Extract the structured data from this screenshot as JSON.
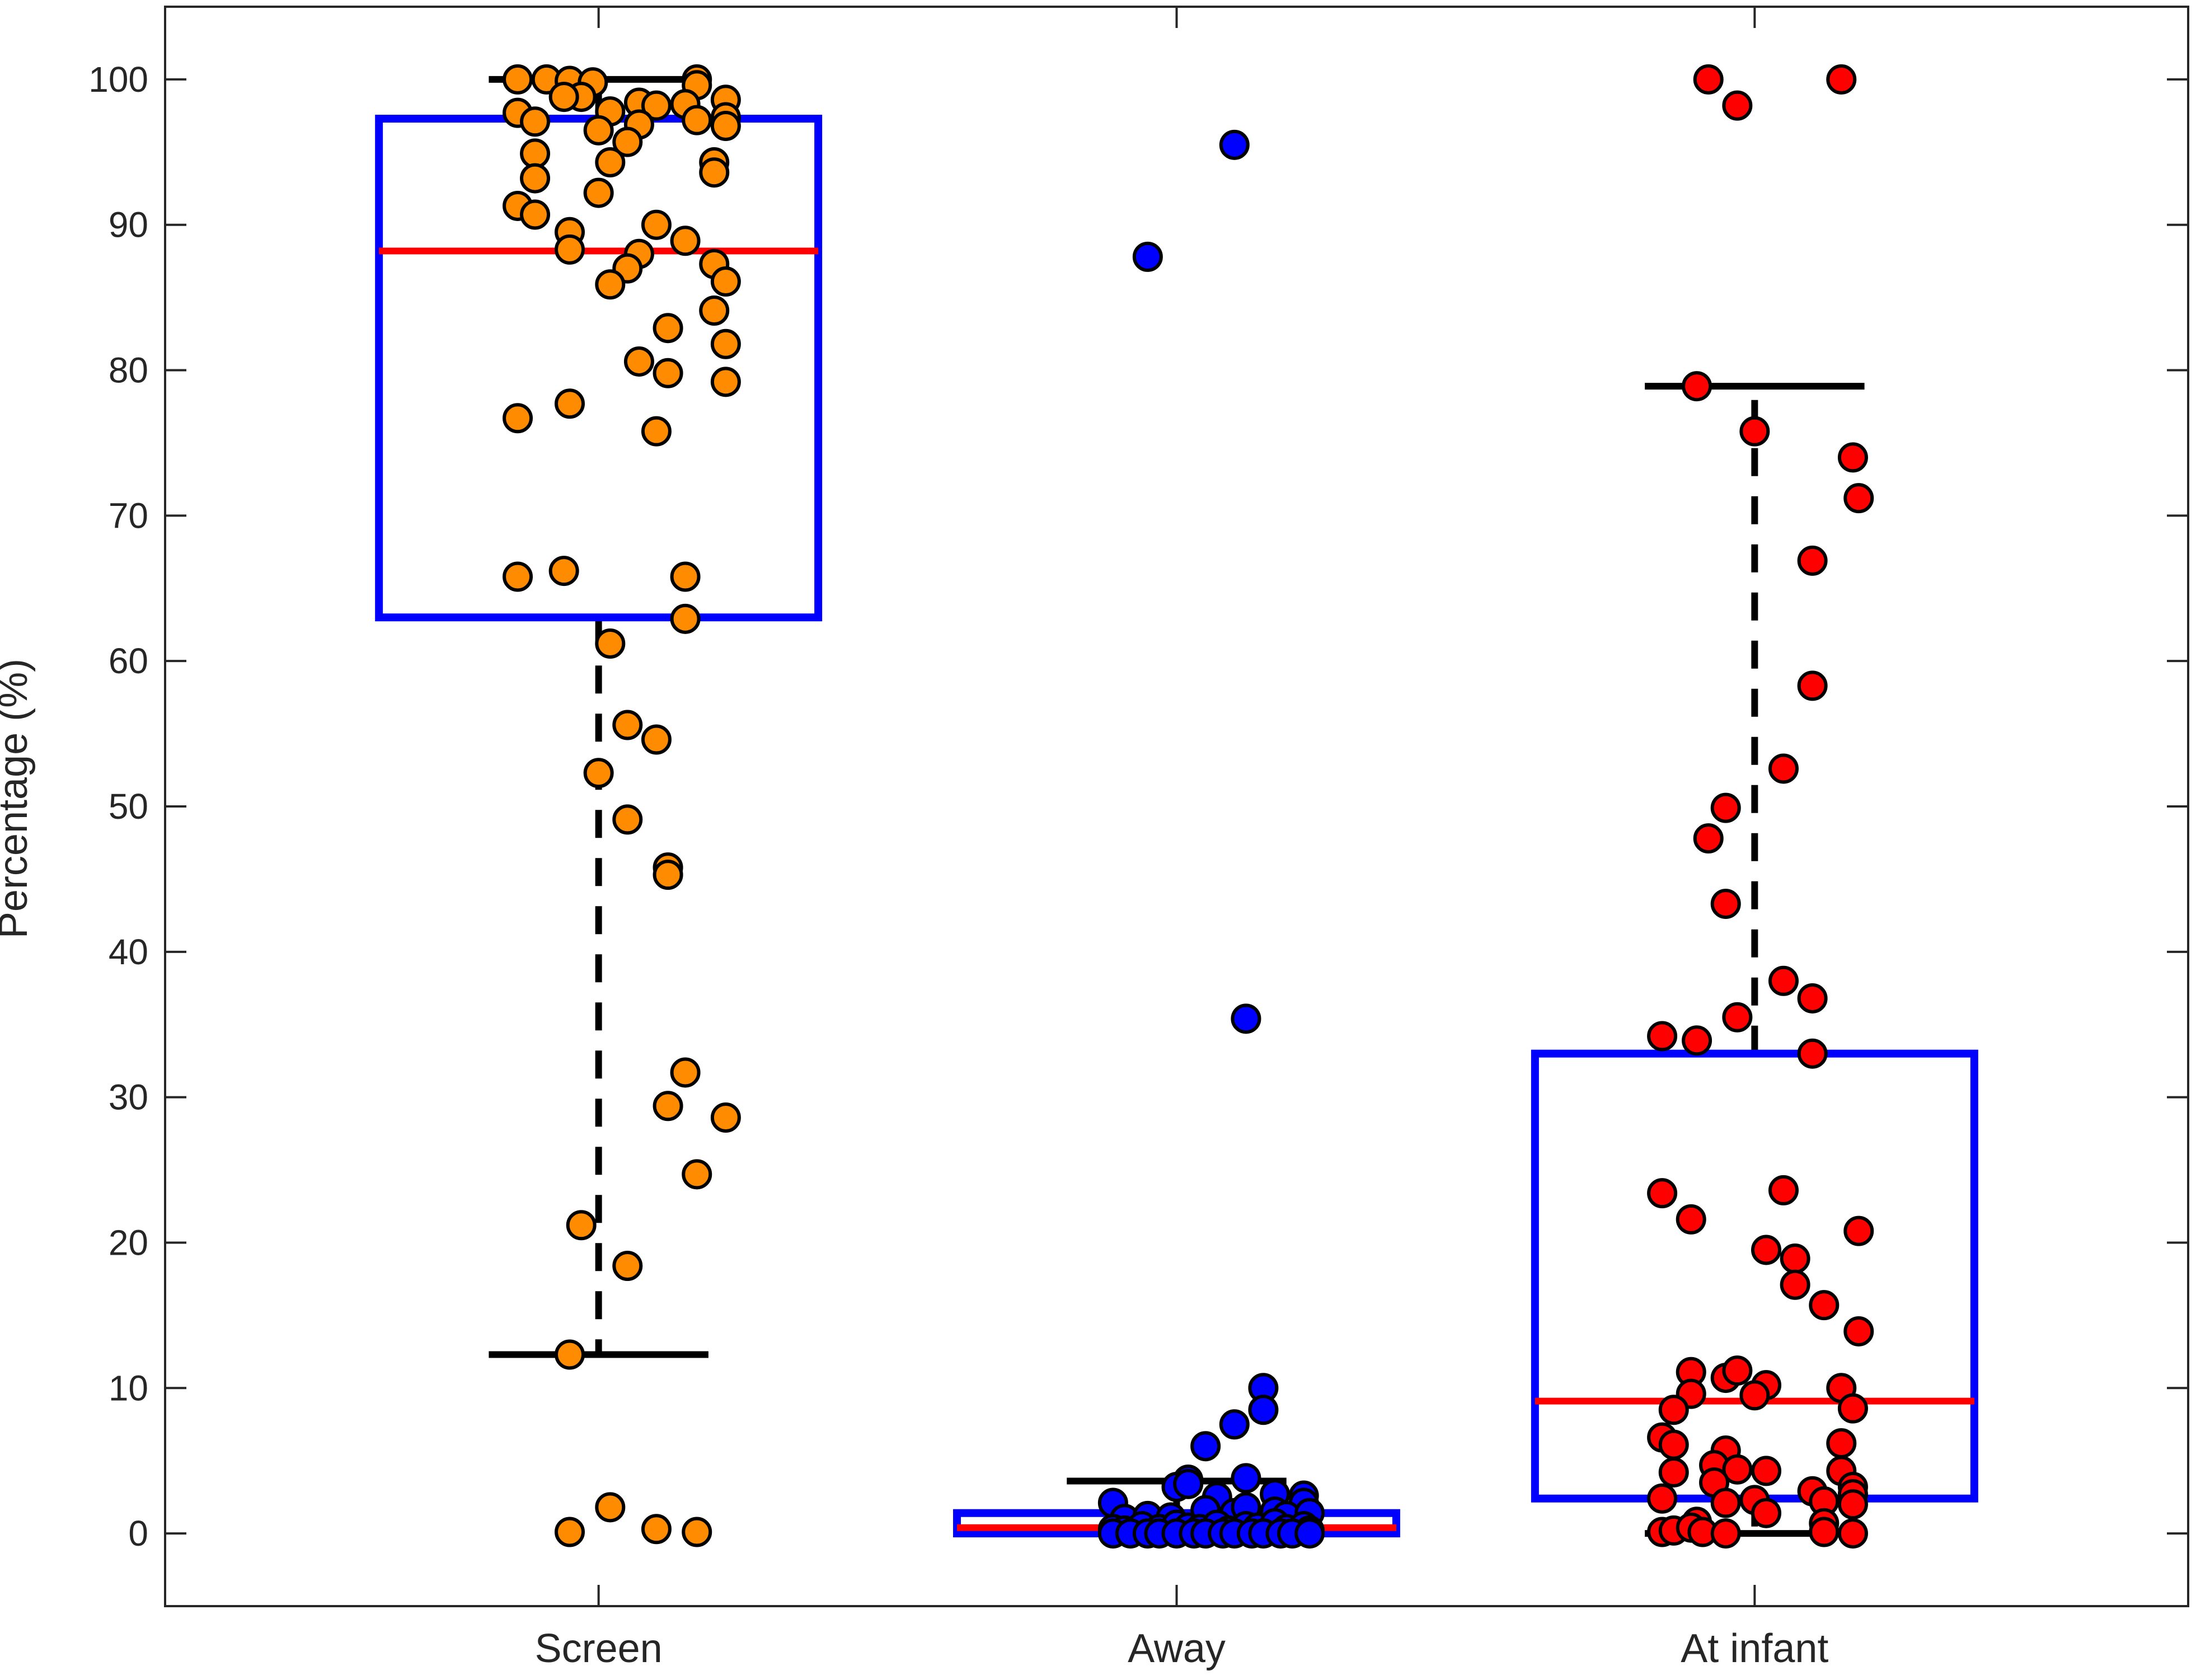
{
  "chart_data": {
    "type": "box",
    "title": "",
    "xlabel": "",
    "ylabel": "Percentage (%)",
    "ylim": [
      -5,
      105
    ],
    "yticks": [
      0,
      10,
      20,
      30,
      40,
      50,
      60,
      70,
      80,
      90,
      100
    ],
    "ytick_labels": [
      "0",
      "10",
      "20",
      "30",
      "40",
      "50",
      "60",
      "70",
      "80",
      "90",
      "100"
    ],
    "categories": [
      "Screen",
      "Away",
      "At infant"
    ],
    "grid": false,
    "box_color": "#0000ff",
    "median_color": "#ff0000",
    "whisker_color": "#000000",
    "series": [
      {
        "category": "Screen",
        "marker_color": "#ff8c00",
        "stats": {
          "q1": 63.0,
          "median": 88.2,
          "q3": 97.3,
          "whisker_low": 12.3,
          "whisker_high": 100.0
        },
        "points": [
          {
            "x": 0.86,
            "y": 100.0
          },
          {
            "x": 0.91,
            "y": 100.0
          },
          {
            "x": 0.95,
            "y": 99.9
          },
          {
            "x": 0.99,
            "y": 99.8
          },
          {
            "x": 1.17,
            "y": 100.0
          },
          {
            "x": 1.17,
            "y": 99.6
          },
          {
            "x": 0.97,
            "y": 98.8
          },
          {
            "x": 0.94,
            "y": 98.8
          },
          {
            "x": 0.86,
            "y": 97.7
          },
          {
            "x": 0.89,
            "y": 97.1
          },
          {
            "x": 1.02,
            "y": 97.8
          },
          {
            "x": 1.07,
            "y": 98.4
          },
          {
            "x": 1.1,
            "y": 98.2
          },
          {
            "x": 1.15,
            "y": 98.3
          },
          {
            "x": 1.22,
            "y": 98.6
          },
          {
            "x": 1.22,
            "y": 97.4
          },
          {
            "x": 1.17,
            "y": 97.2
          },
          {
            "x": 1.22,
            "y": 96.8
          },
          {
            "x": 1.0,
            "y": 96.5
          },
          {
            "x": 1.07,
            "y": 96.9
          },
          {
            "x": 1.05,
            "y": 95.7
          },
          {
            "x": 1.02,
            "y": 94.3
          },
          {
            "x": 0.89,
            "y": 94.9
          },
          {
            "x": 1.2,
            "y": 94.3
          },
          {
            "x": 1.2,
            "y": 93.6
          },
          {
            "x": 0.89,
            "y": 93.2
          },
          {
            "x": 1.0,
            "y": 92.2
          },
          {
            "x": 0.86,
            "y": 91.3
          },
          {
            "x": 0.89,
            "y": 90.7
          },
          {
            "x": 1.1,
            "y": 90.0
          },
          {
            "x": 0.95,
            "y": 89.5
          },
          {
            "x": 0.95,
            "y": 88.3
          },
          {
            "x": 1.15,
            "y": 88.9
          },
          {
            "x": 1.07,
            "y": 88.0
          },
          {
            "x": 1.05,
            "y": 87.0
          },
          {
            "x": 1.2,
            "y": 87.3
          },
          {
            "x": 1.02,
            "y": 85.9
          },
          {
            "x": 1.22,
            "y": 86.1
          },
          {
            "x": 1.2,
            "y": 84.1
          },
          {
            "x": 1.12,
            "y": 82.9
          },
          {
            "x": 1.22,
            "y": 81.8
          },
          {
            "x": 1.07,
            "y": 80.6
          },
          {
            "x": 1.12,
            "y": 79.8
          },
          {
            "x": 1.22,
            "y": 79.2
          },
          {
            "x": 0.86,
            "y": 76.7
          },
          {
            "x": 0.95,
            "y": 77.7
          },
          {
            "x": 1.1,
            "y": 75.8
          },
          {
            "x": 0.86,
            "y": 65.8
          },
          {
            "x": 0.94,
            "y": 66.2
          },
          {
            "x": 1.15,
            "y": 65.8
          },
          {
            "x": 1.15,
            "y": 62.9
          },
          {
            "x": 1.02,
            "y": 61.2
          },
          {
            "x": 1.05,
            "y": 55.6
          },
          {
            "x": 1.1,
            "y": 54.6
          },
          {
            "x": 1.0,
            "y": 52.3
          },
          {
            "x": 1.05,
            "y": 49.1
          },
          {
            "x": 1.12,
            "y": 45.8
          },
          {
            "x": 1.12,
            "y": 45.3
          },
          {
            "x": 1.15,
            "y": 31.7
          },
          {
            "x": 1.12,
            "y": 29.4
          },
          {
            "x": 1.22,
            "y": 28.6
          },
          {
            "x": 1.17,
            "y": 24.7
          },
          {
            "x": 0.97,
            "y": 21.2
          },
          {
            "x": 1.05,
            "y": 18.4
          },
          {
            "x": 0.95,
            "y": 12.3
          },
          {
            "x": 0.95,
            "y": 0.1
          },
          {
            "x": 1.02,
            "y": 1.8
          },
          {
            "x": 1.1,
            "y": 0.3
          },
          {
            "x": 1.17,
            "y": 0.1
          }
        ]
      },
      {
        "category": "Away",
        "marker_color": "#0000ff",
        "stats": {
          "q1": 0.0,
          "median": 0.4,
          "q3": 1.4,
          "whisker_low": 0.0,
          "whisker_high": 3.6
        },
        "points": [
          {
            "x": 2.1,
            "y": 95.5
          },
          {
            "x": 1.95,
            "y": 87.8
          },
          {
            "x": 2.12,
            "y": 35.4
          },
          {
            "x": 2.15,
            "y": 10.0
          },
          {
            "x": 2.15,
            "y": 8.5
          },
          {
            "x": 2.1,
            "y": 7.5
          },
          {
            "x": 2.05,
            "y": 6.0
          },
          {
            "x": 2.02,
            "y": 3.7
          },
          {
            "x": 2.12,
            "y": 3.8
          },
          {
            "x": 2.0,
            "y": 3.2
          },
          {
            "x": 2.02,
            "y": 3.4
          },
          {
            "x": 2.07,
            "y": 2.5
          },
          {
            "x": 2.17,
            "y": 2.7
          },
          {
            "x": 2.22,
            "y": 2.6
          },
          {
            "x": 2.22,
            "y": 2.1
          },
          {
            "x": 1.89,
            "y": 2.1
          },
          {
            "x": 1.91,
            "y": 1.0
          },
          {
            "x": 1.95,
            "y": 1.2
          },
          {
            "x": 1.99,
            "y": 1.1
          },
          {
            "x": 2.05,
            "y": 1.6
          },
          {
            "x": 2.1,
            "y": 1.4
          },
          {
            "x": 2.12,
            "y": 1.8
          },
          {
            "x": 2.17,
            "y": 1.5
          },
          {
            "x": 2.19,
            "y": 1.2
          },
          {
            "x": 2.23,
            "y": 1.4
          },
          {
            "x": 1.89,
            "y": 0.3
          },
          {
            "x": 1.91,
            "y": 0.2
          },
          {
            "x": 1.94,
            "y": 0.5
          },
          {
            "x": 1.97,
            "y": 0.3
          },
          {
            "x": 2.0,
            "y": 0.6
          },
          {
            "x": 2.02,
            "y": 0.4
          },
          {
            "x": 2.04,
            "y": 0.3
          },
          {
            "x": 2.07,
            "y": 0.6
          },
          {
            "x": 2.09,
            "y": 0.2
          },
          {
            "x": 2.12,
            "y": 0.5
          },
          {
            "x": 2.14,
            "y": 0.4
          },
          {
            "x": 2.17,
            "y": 0.7
          },
          {
            "x": 2.19,
            "y": 0.3
          },
          {
            "x": 2.22,
            "y": 0.5
          },
          {
            "x": 2.23,
            "y": 0.2
          },
          {
            "x": 1.89,
            "y": 0.0
          },
          {
            "x": 1.92,
            "y": 0.0
          },
          {
            "x": 1.95,
            "y": 0.0
          },
          {
            "x": 1.97,
            "y": 0.0
          },
          {
            "x": 2.0,
            "y": 0.0
          },
          {
            "x": 2.03,
            "y": 0.0
          },
          {
            "x": 2.05,
            "y": 0.0
          },
          {
            "x": 2.08,
            "y": 0.0
          },
          {
            "x": 2.1,
            "y": 0.0
          },
          {
            "x": 2.13,
            "y": 0.0
          },
          {
            "x": 2.15,
            "y": 0.0
          },
          {
            "x": 2.18,
            "y": 0.0
          },
          {
            "x": 2.2,
            "y": 0.0
          },
          {
            "x": 2.23,
            "y": 0.0
          }
        ]
      },
      {
        "category": "At infant",
        "marker_color": "#ff0000",
        "stats": {
          "q1": 2.4,
          "median": 9.1,
          "q3": 33.0,
          "whisker_low": 0.0,
          "whisker_high": 78.9
        },
        "points": [
          {
            "x": 2.92,
            "y": 100.0
          },
          {
            "x": 3.15,
            "y": 100.0
          },
          {
            "x": 2.97,
            "y": 98.2
          },
          {
            "x": 2.9,
            "y": 78.9
          },
          {
            "x": 3.0,
            "y": 75.8
          },
          {
            "x": 3.17,
            "y": 74.0
          },
          {
            "x": 3.18,
            "y": 71.2
          },
          {
            "x": 3.1,
            "y": 66.9
          },
          {
            "x": 3.1,
            "y": 58.3
          },
          {
            "x": 3.05,
            "y": 52.6
          },
          {
            "x": 2.95,
            "y": 49.9
          },
          {
            "x": 2.92,
            "y": 47.8
          },
          {
            "x": 2.95,
            "y": 43.3
          },
          {
            "x": 3.05,
            "y": 38.0
          },
          {
            "x": 3.1,
            "y": 36.8
          },
          {
            "x": 2.97,
            "y": 35.5
          },
          {
            "x": 2.84,
            "y": 34.2
          },
          {
            "x": 2.9,
            "y": 33.9
          },
          {
            "x": 3.1,
            "y": 33.0
          },
          {
            "x": 2.84,
            "y": 23.4
          },
          {
            "x": 3.05,
            "y": 23.6
          },
          {
            "x": 2.89,
            "y": 21.6
          },
          {
            "x": 3.02,
            "y": 19.5
          },
          {
            "x": 3.07,
            "y": 18.9
          },
          {
            "x": 3.18,
            "y": 20.8
          },
          {
            "x": 3.07,
            "y": 17.1
          },
          {
            "x": 3.12,
            "y": 15.7
          },
          {
            "x": 3.18,
            "y": 13.9
          },
          {
            "x": 2.89,
            "y": 11.1
          },
          {
            "x": 2.95,
            "y": 10.7
          },
          {
            "x": 2.97,
            "y": 11.2
          },
          {
            "x": 3.02,
            "y": 10.2
          },
          {
            "x": 3.15,
            "y": 10.0
          },
          {
            "x": 2.89,
            "y": 9.6
          },
          {
            "x": 3.0,
            "y": 9.5
          },
          {
            "x": 3.17,
            "y": 8.6
          },
          {
            "x": 2.86,
            "y": 8.5
          },
          {
            "x": 2.84,
            "y": 6.6
          },
          {
            "x": 2.86,
            "y": 6.1
          },
          {
            "x": 2.95,
            "y": 5.7
          },
          {
            "x": 3.15,
            "y": 6.2
          },
          {
            "x": 2.93,
            "y": 4.7
          },
          {
            "x": 2.97,
            "y": 4.4
          },
          {
            "x": 3.02,
            "y": 4.3
          },
          {
            "x": 3.15,
            "y": 4.3
          },
          {
            "x": 2.86,
            "y": 4.2
          },
          {
            "x": 2.93,
            "y": 3.5
          },
          {
            "x": 3.17,
            "y": 3.2
          },
          {
            "x": 3.17,
            "y": 2.7
          },
          {
            "x": 2.84,
            "y": 2.4
          },
          {
            "x": 2.95,
            "y": 2.1
          },
          {
            "x": 3.0,
            "y": 2.3
          },
          {
            "x": 3.1,
            "y": 2.9
          },
          {
            "x": 3.12,
            "y": 2.2
          },
          {
            "x": 3.17,
            "y": 2.0
          },
          {
            "x": 3.02,
            "y": 1.4
          },
          {
            "x": 3.12,
            "y": 0.7
          },
          {
            "x": 2.9,
            "y": 0.8
          },
          {
            "x": 2.84,
            "y": 0.1
          },
          {
            "x": 2.86,
            "y": 0.2
          },
          {
            "x": 2.89,
            "y": 0.4
          },
          {
            "x": 2.91,
            "y": 0.1
          },
          {
            "x": 2.95,
            "y": 0.0
          },
          {
            "x": 3.12,
            "y": 0.1
          },
          {
            "x": 3.17,
            "y": 0.0
          }
        ]
      }
    ]
  }
}
